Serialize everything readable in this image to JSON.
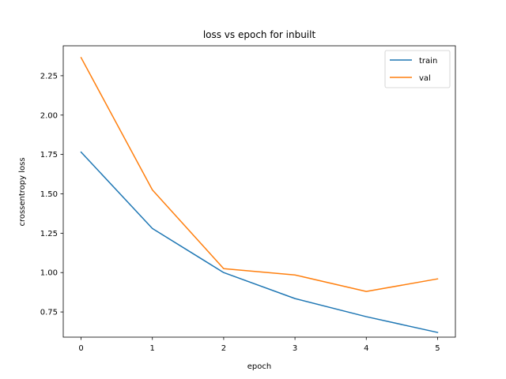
{
  "chart_data": {
    "type": "line",
    "title": "loss vs epoch for inbuilt",
    "xlabel": "epoch",
    "ylabel": "crossentropy loss",
    "x": [
      0,
      1,
      2,
      3,
      4,
      5
    ],
    "x_ticks": [
      "0",
      "1",
      "2",
      "3",
      "4",
      "5"
    ],
    "y_ticks": [
      "0.75",
      "1.00",
      "1.25",
      "1.50",
      "1.75",
      "2.00",
      "2.25"
    ],
    "xlim": [
      -0.25,
      5.25
    ],
    "ylim": [
      0.59,
      2.44
    ],
    "grid": false,
    "legend_position": "top-right",
    "series": [
      {
        "name": "train",
        "color": "#1f77b4",
        "values": [
          1.765,
          1.28,
          1.0,
          0.835,
          0.72,
          0.62
        ]
      },
      {
        "name": "val",
        "color": "#ff7f0e",
        "values": [
          2.365,
          1.525,
          1.025,
          0.985,
          0.88,
          0.96
        ]
      }
    ]
  }
}
